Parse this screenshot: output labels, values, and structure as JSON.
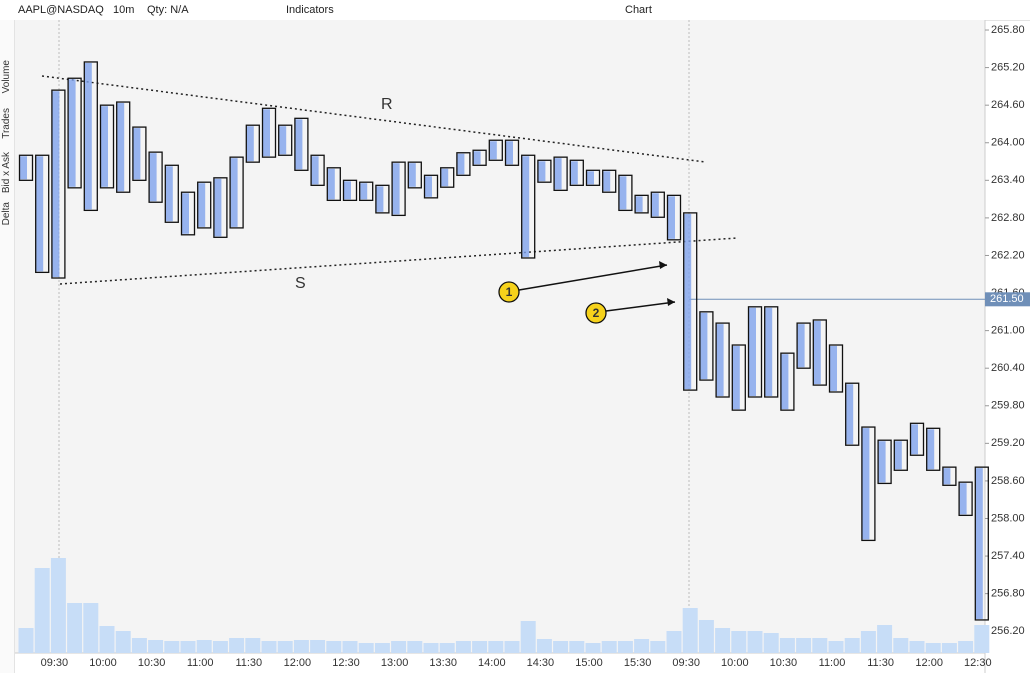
{
  "toolbar": {
    "symbol": "AAPL@NASDAQ",
    "timeframe": "10m",
    "qty": "Qty: N/A",
    "indicators": "Indicators",
    "title": "Chart"
  },
  "side_panel": [
    "Volume",
    "Trades",
    "Bid x Ask",
    "Delta"
  ],
  "chart_data": {
    "type": "footprint",
    "categories": [
      null,
      null,
      "09:30",
      null,
      null,
      "10:00",
      null,
      null,
      "10:30",
      null,
      null,
      "11:00",
      null,
      null,
      "11:30",
      null,
      null,
      "12:00",
      null,
      null,
      "12:30",
      null,
      null,
      "13:00",
      null,
      null,
      "13:30",
      null,
      null,
      "14:00",
      null,
      null,
      "14:30",
      null,
      null,
      "15:00",
      null,
      null,
      "15:30",
      null,
      null,
      "09:30",
      null,
      null,
      "10:00",
      null,
      null,
      "10:30",
      null,
      null,
      "11:00",
      null,
      null,
      "11:30",
      null,
      null,
      "12:00",
      null,
      null,
      "12:30"
    ],
    "body_high": [
      263.8,
      263.8,
      264.84,
      265.03,
      265.29,
      264.6,
      264.65,
      264.25,
      263.85,
      263.64,
      263.21,
      263.37,
      263.44,
      263.77,
      264.28,
      264.55,
      264.28,
      264.39,
      263.8,
      263.6,
      263.4,
      263.37,
      263.32,
      263.69,
      263.69,
      263.48,
      263.6,
      263.84,
      263.88,
      264.04,
      264.04,
      263.8,
      263.72,
      263.77,
      263.72,
      263.56,
      263.56,
      263.48,
      263.16,
      263.21,
      263.16,
      262.88,
      261.3,
      261.12,
      260.77,
      261.38,
      261.38,
      260.64,
      261.12,
      261.17,
      260.77,
      260.16,
      259.46,
      259.25,
      259.25,
      259.52,
      259.44,
      258.82,
      258.58,
      258.82
    ],
    "body_low": [
      263.4,
      261.93,
      261.84,
      263.28,
      262.92,
      263.28,
      263.21,
      263.4,
      263.05,
      262.73,
      262.53,
      262.64,
      262.49,
      262.64,
      263.69,
      263.77,
      263.8,
      263.56,
      263.32,
      263.08,
      263.08,
      263.08,
      262.88,
      262.84,
      263.28,
      263.12,
      263.29,
      263.48,
      263.64,
      263.72,
      263.64,
      262.16,
      263.37,
      263.24,
      263.32,
      263.32,
      263.21,
      262.92,
      262.88,
      262.81,
      262.45,
      260.05,
      260.21,
      259.94,
      259.73,
      259.94,
      259.94,
      259.73,
      260.4,
      260.13,
      260.02,
      259.17,
      257.65,
      258.56,
      258.77,
      259.01,
      258.77,
      258.53,
      258.05,
      256.38
    ],
    "volume": [
      25,
      85,
      95,
      50,
      50,
      27,
      22,
      15,
      13,
      12,
      12,
      13,
      12,
      15,
      15,
      12,
      12,
      13,
      13,
      12,
      12,
      10,
      10,
      12,
      12,
      10,
      10,
      12,
      12,
      12,
      12,
      32,
      14,
      12,
      12,
      10,
      12,
      12,
      14,
      12,
      22,
      45,
      33,
      25,
      22,
      22,
      20,
      15,
      15,
      15,
      12,
      15,
      22,
      28,
      15,
      12,
      10,
      10,
      12,
      28
    ],
    "ylim": [
      255.9,
      265.96
    ],
    "yticks": [
      {
        "value": 265.8,
        "label": "265.80"
      },
      {
        "value": 265.2,
        "label": "265.20"
      },
      {
        "value": 264.6,
        "label": "264.60"
      },
      {
        "value": 264.0,
        "label": "264.00"
      },
      {
        "value": 263.4,
        "label": "263.40"
      },
      {
        "value": 262.8,
        "label": "262.80"
      },
      {
        "value": 262.2,
        "label": "262.20"
      },
      {
        "value": 261.6,
        "label": "261.60"
      },
      {
        "value": 261.0,
        "label": "261.00"
      },
      {
        "value": 260.4,
        "label": "260.40"
      },
      {
        "value": 259.8,
        "label": "259.80"
      },
      {
        "value": 259.2,
        "label": "259.20"
      },
      {
        "value": 258.6,
        "label": "258.60"
      },
      {
        "value": 258.0,
        "label": "258.00"
      },
      {
        "value": 257.4,
        "label": "257.40"
      },
      {
        "value": 256.8,
        "label": "256.80"
      },
      {
        "value": 256.2,
        "label": "256.20"
      }
    ],
    "price_line": {
      "value": 261.5,
      "label": "261.50"
    },
    "annotations": [
      "R",
      "S",
      "1",
      "2"
    ],
    "box_color": "#111111",
    "profile_color": "#7fa2ec",
    "volume_color": "#c7ddf7",
    "price_line_color": "#6f8fb8"
  }
}
